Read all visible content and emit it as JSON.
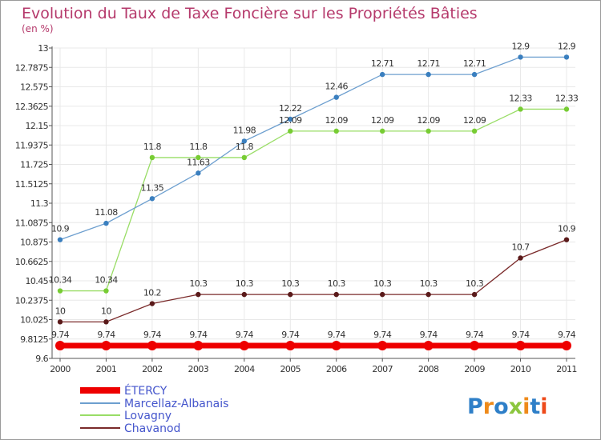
{
  "title": "Evolution du Taux de Taxe Foncière sur les Propriétés Bâties",
  "unit_label": "(en %)",
  "brand": "Proxiti",
  "colors": {
    "title": "#b5396b",
    "axis": "#555555",
    "grid": "#e8e8e8",
    "legend_text": "#4455cc"
  },
  "chart_data": {
    "type": "line",
    "x": [
      "2000",
      "2001",
      "2002",
      "2003",
      "2004",
      "2005",
      "2006",
      "2007",
      "2008",
      "2009",
      "2010",
      "2011"
    ],
    "yticks": [
      "13",
      "12.7875",
      "12.575",
      "12.3625",
      "12.15",
      "11.9375",
      "11.725",
      "11.5125",
      "11.3",
      "11.0875",
      "10.875",
      "10.6625",
      "10.45",
      "10.2375",
      "10.025",
      "9.8125",
      "9.6"
    ],
    "ylim": [
      9.6,
      13
    ],
    "grid": true,
    "legend_position": "bottom-left",
    "series": [
      {
        "name": "ÉTERCY",
        "color": "#ee0000",
        "values": [
          9.74,
          9.74,
          9.74,
          9.74,
          9.74,
          9.74,
          9.74,
          9.74,
          9.74,
          9.74,
          9.74,
          9.74
        ],
        "labels": [
          "9.74",
          "9.74",
          "9.74",
          "9.74",
          "9.74",
          "9.74",
          "9.74",
          "9.74",
          "9.74",
          "9.74",
          "9.74",
          "9.74"
        ]
      },
      {
        "name": "Marcellaz-Albanais",
        "color": "#6d9fcf",
        "marker": "#3a7fbf",
        "values": [
          10.9,
          11.08,
          11.35,
          11.63,
          11.98,
          12.22,
          12.46,
          12.71,
          12.71,
          12.71,
          12.9,
          12.9
        ],
        "labels": [
          "10.9",
          "11.08",
          "11.35",
          "11.63",
          "11.98",
          "12.22",
          "12.46",
          "12.71",
          "12.71",
          "12.71",
          "12.9",
          "12.9"
        ]
      },
      {
        "name": "Lovagny",
        "color": "#99dd66",
        "marker": "#77cc33",
        "values": [
          10.34,
          10.34,
          11.8,
          11.8,
          11.8,
          12.09,
          12.09,
          12.09,
          12.09,
          12.09,
          12.33,
          12.33
        ],
        "labels": [
          "10.34",
          "10.34",
          "11.8",
          "11.8",
          "11.8",
          "12.09",
          "12.09",
          "12.09",
          "12.09",
          "12.09",
          "12.33",
          "12.33"
        ]
      },
      {
        "name": "Chavanod",
        "color": "#7a2a2a",
        "marker": "#5a1a1a",
        "values": [
          10.0,
          10.0,
          10.2,
          10.3,
          10.3,
          10.3,
          10.3,
          10.3,
          10.3,
          10.3,
          10.7,
          10.9
        ],
        "labels": [
          "10",
          "10",
          "10.2",
          "10.3",
          "10.3",
          "10.3",
          "10.3",
          "10.3",
          "10.3",
          "10.3",
          "10.7",
          "10.9"
        ]
      }
    ]
  }
}
